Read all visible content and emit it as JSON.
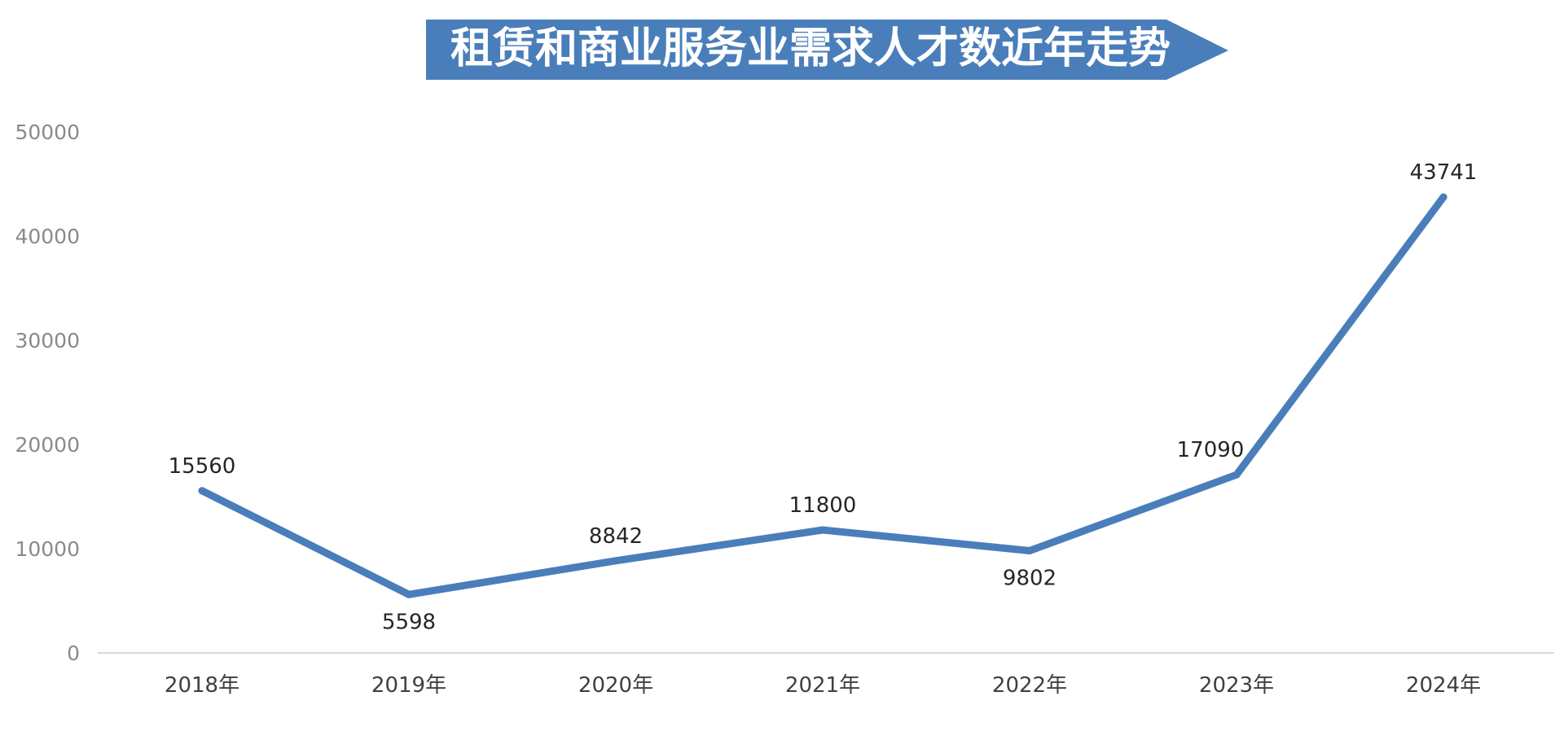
{
  "chart_data": {
    "type": "line",
    "title": "租赁和商业服务业需求人才数近年走势",
    "categories": [
      "2018年",
      "2019年",
      "2020年",
      "2021年",
      "2022年",
      "2023年",
      "2024年"
    ],
    "series": [
      {
        "values": [
          15560,
          5598,
          8842,
          11800,
          9802,
          17090,
          43741
        ]
      }
    ],
    "data_labels": [
      "15560",
      "5598",
      "8842",
      "11800",
      "9802",
      "17090",
      "43741"
    ],
    "y_ticks": [
      "0",
      "10000",
      "20000",
      "30000",
      "40000",
      "50000"
    ],
    "ylim": [
      0,
      50000
    ],
    "grid": false,
    "legend": "none",
    "colors": {
      "line": "#4a7ebb",
      "title_banner": "#4a7ebb",
      "axis": "#d9d9d9"
    }
  }
}
